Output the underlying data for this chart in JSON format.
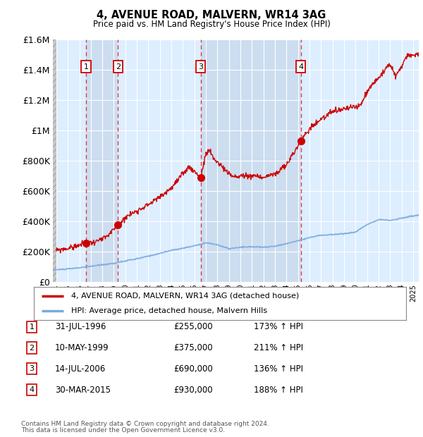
{
  "title": "4, AVENUE ROAD, MALVERN, WR14 3AG",
  "subtitle": "Price paid vs. HM Land Registry's House Price Index (HPI)",
  "footer1": "Contains HM Land Registry data © Crown copyright and database right 2024.",
  "footer2": "This data is licensed under the Open Government Licence v3.0.",
  "legend_label_red": "4, AVENUE ROAD, MALVERN, WR14 3AG (detached house)",
  "legend_label_blue": "HPI: Average price, detached house, Malvern Hills",
  "sale_entries": [
    {
      "num": 1,
      "date": "31-JUL-1996",
      "price": "£255,000",
      "hpi": "173% ↑ HPI"
    },
    {
      "num": 2,
      "date": "10-MAY-1999",
      "price": "£375,000",
      "hpi": "211% ↑ HPI"
    },
    {
      "num": 3,
      "date": "14-JUL-2006",
      "price": "£690,000",
      "hpi": "136% ↑ HPI"
    },
    {
      "num": 4,
      "date": "30-MAR-2015",
      "price": "£930,000",
      "hpi": "188% ↑ HPI"
    }
  ],
  "sale_years": [
    1996.58,
    1999.36,
    2006.54,
    2015.25
  ],
  "sale_prices": [
    255000,
    375000,
    690000,
    930000
  ],
  "ylim": [
    0,
    1600000
  ],
  "xlim_start": 1993.7,
  "xlim_end": 2025.5,
  "yticks": [
    0,
    200000,
    400000,
    600000,
    800000,
    1000000,
    1200000,
    1400000,
    1600000
  ],
  "ytick_labels": [
    "£0",
    "£200K",
    "£400K",
    "£600K",
    "£800K",
    "£1M",
    "£1.2M",
    "£1.4M",
    "£1.6M"
  ],
  "red_color": "#cc0000",
  "blue_color": "#7aaadd",
  "bg_plot": "#ddeeff",
  "grid_color": "#ffffff",
  "dashed_line_color": "#dd2222",
  "hatch_color": "#c8c8c8",
  "shade_color": "#ccddf0"
}
